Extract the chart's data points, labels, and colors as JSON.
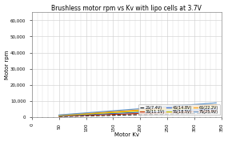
{
  "title": "Brushless motor rpm vs Kv with lipo cells at 3.7V",
  "xlabel": "Motor Kv",
  "ylabel": "Motor rpm",
  "voltage_per_cell": 3.7,
  "cells": [
    2,
    3,
    4,
    5,
    6,
    7
  ],
  "cell_labels": [
    "2S(7.4V)",
    "3S(11.1V)",
    "4S(14.8V)",
    "5S(18.5V)",
    "6S(22.2V)",
    "7S(25.9V)"
  ],
  "colors": [
    "#222222",
    "#cc3300",
    "#3366cc",
    "#cccc00",
    "#ff9900",
    "#6699cc"
  ],
  "kv_ranges": [
    [
      50,
      340
    ],
    [
      50,
      340
    ],
    [
      50,
      340
    ],
    [
      50,
      340
    ],
    [
      50,
      340
    ],
    [
      50,
      340
    ]
  ],
  "xlim": [
    0,
    350
  ],
  "ylim": [
    0,
    65000
  ],
  "xtick_values": [
    0,
    50,
    100,
    150,
    200,
    250,
    300,
    350
  ],
  "ytick_values": [
    0,
    10000,
    20000,
    30000,
    40000,
    50000,
    60000
  ],
  "ytick_labels": [
    "0",
    "10,000",
    "20,000",
    "30,000",
    "40,000",
    "50,000",
    "60,000"
  ],
  "background_color": "#ffffff",
  "grid_color": "#dddddd",
  "title_fontsize": 5.5,
  "label_fontsize": 5,
  "tick_fontsize": 4,
  "legend_fontsize": 3.5,
  "line_width": 0.9
}
